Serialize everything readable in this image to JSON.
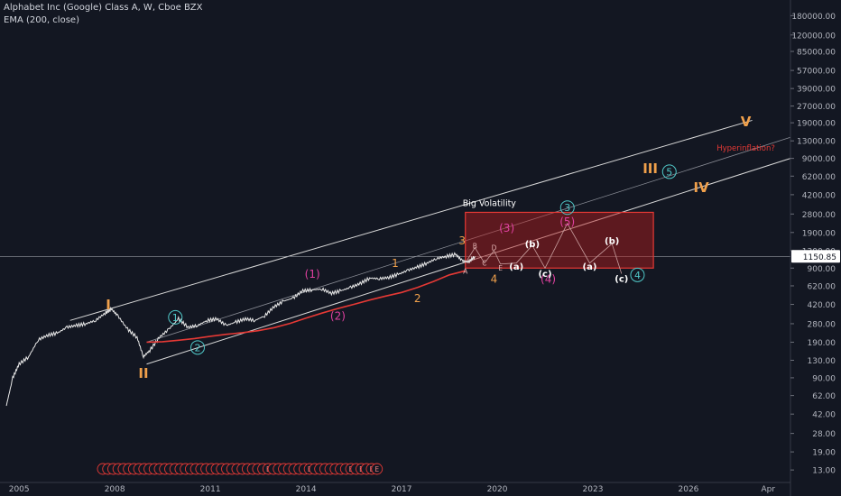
{
  "header": {
    "title": "Alphabet Inc (Google) Class A, W, Cboe BZX",
    "indicator": "EMA (200, close)"
  },
  "colors": {
    "background": "#131722",
    "price": "#e8e8e8",
    "ema": "#e53935",
    "channel": "#d8d8d8",
    "box_border": "#e53935",
    "box_fill": "#b71c1c",
    "primary_wave": "#f0a04b",
    "intermediate_wave": "#e040a0",
    "minor_wave": "#50c8c8",
    "corrective_wave": "#ffffff",
    "annotation_red": "#e53935",
    "axis_text": "#b2b5be"
  },
  "price_label": "1150.85",
  "chart_data": {
    "type": "line",
    "title": "Alphabet Inc (Google) Class A, W, Cboe BZX",
    "xlabel": "",
    "ylabel": "",
    "y_scale": "log",
    "xlim": [
      2004.4,
      2029.2
    ],
    "ylim": [
      10,
      250000
    ],
    "x_ticks": [
      {
        "x": 2005,
        "label": "2005"
      },
      {
        "x": 2008,
        "label": "2008"
      },
      {
        "x": 2011,
        "label": "2011"
      },
      {
        "x": 2014,
        "label": "2014"
      },
      {
        "x": 2017,
        "label": "2017"
      },
      {
        "x": 2020,
        "label": "2020"
      },
      {
        "x": 2023,
        "label": "2023"
      },
      {
        "x": 2026,
        "label": "2026"
      },
      {
        "x": 2028.5,
        "label": "Apr"
      }
    ],
    "y_ticks": [
      {
        "y": 180000,
        "label": "180000.00"
      },
      {
        "y": 120000,
        "label": "120000.00"
      },
      {
        "y": 85000,
        "label": "85000.00"
      },
      {
        "y": 57000,
        "label": "57000.00"
      },
      {
        "y": 39000,
        "label": "39000.00"
      },
      {
        "y": 27000,
        "label": "27000.00"
      },
      {
        "y": 19000,
        "label": "19000.00"
      },
      {
        "y": 13000,
        "label": "13000.00"
      },
      {
        "y": 9000,
        "label": "9000.00"
      },
      {
        "y": 6200,
        "label": "6200.00"
      },
      {
        "y": 4200,
        "label": "4200.00"
      },
      {
        "y": 2800,
        "label": "2800.00"
      },
      {
        "y": 1900,
        "label": "1900.00"
      },
      {
        "y": 1300,
        "label": "1300.00"
      },
      {
        "y": 900,
        "label": "900.00"
      },
      {
        "y": 620,
        "label": "620.00"
      },
      {
        "y": 420,
        "label": "420.00"
      },
      {
        "y": 280,
        "label": "280.00"
      },
      {
        "y": 190,
        "label": "190.00"
      },
      {
        "y": 130,
        "label": "130.00"
      },
      {
        "y": 90,
        "label": "90.00"
      },
      {
        "y": 62,
        "label": "62.00"
      },
      {
        "y": 42,
        "label": "42.00"
      },
      {
        "y": 28,
        "label": "28.00"
      },
      {
        "y": 19,
        "label": "19.00"
      },
      {
        "y": 13,
        "label": "13.00"
      }
    ],
    "current_price": 1150.85,
    "series": [
      {
        "name": "",
        "role": "price",
        "x": [
          2004.6,
          2004.8,
          2005.0,
          2005.3,
          2005.6,
          2005.9,
          2006.2,
          2006.5,
          2006.8,
          2007.1,
          2007.4,
          2007.7,
          2007.9,
          2008.1,
          2008.4,
          2008.7,
          2008.9,
          2009.1,
          2009.4,
          2009.7,
          2010.0,
          2010.3,
          2010.6,
          2010.9,
          2011.2,
          2011.5,
          2011.8,
          2012.1,
          2012.4,
          2012.7,
          2013.0,
          2013.3,
          2013.6,
          2013.9,
          2014.2,
          2014.5,
          2014.8,
          2015.1,
          2015.4,
          2015.7,
          2016.0,
          2016.3,
          2016.6,
          2016.9,
          2017.2,
          2017.5,
          2017.8,
          2018.1,
          2018.4,
          2018.7,
          2018.9,
          2019.1,
          2019.3
        ],
        "y": [
          50,
          90,
          120,
          140,
          200,
          220,
          230,
          260,
          270,
          280,
          300,
          350,
          380,
          330,
          250,
          210,
          140,
          160,
          210,
          250,
          310,
          260,
          270,
          300,
          310,
          270,
          290,
          310,
          300,
          330,
          400,
          450,
          480,
          560,
          570,
          580,
          530,
          560,
          600,
          650,
          730,
          720,
          740,
          790,
          860,
          920,
          1000,
          1100,
          1150,
          1200,
          1050,
          1020,
          1150
        ]
      },
      {
        "name": "EMA (200, close)",
        "role": "ema",
        "x": [
          2009.0,
          2009.5,
          2010.0,
          2010.5,
          2011.0,
          2011.5,
          2012.0,
          2012.5,
          2013.0,
          2013.5,
          2014.0,
          2014.5,
          2015.0,
          2015.5,
          2016.0,
          2016.5,
          2017.0,
          2017.5,
          2018.0,
          2018.5,
          2019.0
        ],
        "y": [
          190,
          192,
          198,
          205,
          215,
          224,
          232,
          242,
          258,
          282,
          315,
          350,
          385,
          420,
          460,
          500,
          540,
          600,
          680,
          780,
          850
        ]
      }
    ],
    "channel_lines": [
      {
        "name": "upper",
        "x": [
          2006.6,
          2028.0
        ],
        "y": [
          300,
          20000
        ]
      },
      {
        "name": "middle",
        "x": [
          2009.0,
          2029.2
        ],
        "y": [
          190,
          14000
        ]
      },
      {
        "name": "lower",
        "x": [
          2009.0,
          2029.2
        ],
        "y": [
          120,
          9000
        ]
      }
    ],
    "box": {
      "x": [
        2019.0,
        2024.9
      ],
      "y": [
        900,
        2900
      ],
      "label": "Big Volatility"
    },
    "annotations": [
      {
        "text": "I",
        "x": 2007.8,
        "y": 420,
        "group": "primary"
      },
      {
        "text": "II",
        "x": 2008.9,
        "y": 100,
        "group": "primary"
      },
      {
        "text": "III",
        "x": 2024.8,
        "y": 7300,
        "group": "primary"
      },
      {
        "text": "IV",
        "x": 2026.4,
        "y": 4900,
        "group": "primary"
      },
      {
        "text": "V",
        "x": 2027.8,
        "y": 19500,
        "group": "primary"
      },
      {
        "text": "1",
        "x": 2009.9,
        "y": 320,
        "group": "minor_circle"
      },
      {
        "text": "2",
        "x": 2010.6,
        "y": 170,
        "group": "minor_circle"
      },
      {
        "text": "3",
        "x": 2022.2,
        "y": 3200,
        "group": "minor_circle"
      },
      {
        "text": "4",
        "x": 2024.4,
        "y": 780,
        "group": "minor_circle"
      },
      {
        "text": "5",
        "x": 2025.4,
        "y": 6800,
        "group": "minor_circle"
      },
      {
        "text": "(1)",
        "x": 2014.2,
        "y": 800,
        "group": "intermediate"
      },
      {
        "text": "(2)",
        "x": 2015.0,
        "y": 330,
        "group": "intermediate"
      },
      {
        "text": "(3)",
        "x": 2020.3,
        "y": 2100,
        "group": "intermediate"
      },
      {
        "text": "(5)",
        "x": 2022.2,
        "y": 2400,
        "group": "intermediate"
      },
      {
        "text": "(4)",
        "x": 2021.6,
        "y": 720,
        "group": "intermediate"
      },
      {
        "text": "1",
        "x": 2016.8,
        "y": 1000,
        "group": "primary_num"
      },
      {
        "text": "2",
        "x": 2017.5,
        "y": 480,
        "group": "primary_num"
      },
      {
        "text": "3",
        "x": 2018.9,
        "y": 1600,
        "group": "primary_num"
      },
      {
        "text": "4",
        "x": 2019.9,
        "y": 720,
        "group": "primary_num"
      },
      {
        "text": "(b)",
        "x": 2021.1,
        "y": 1500,
        "group": "corrective"
      },
      {
        "text": "(a)",
        "x": 2020.6,
        "y": 930,
        "group": "corrective"
      },
      {
        "text": "(c)",
        "x": 2021.5,
        "y": 800,
        "group": "corrective"
      },
      {
        "text": "(b)",
        "x": 2023.6,
        "y": 1600,
        "group": "corrective"
      },
      {
        "text": "(a)",
        "x": 2022.9,
        "y": 930,
        "group": "corrective"
      },
      {
        "text": "(c)",
        "x": 2023.9,
        "y": 720,
        "group": "corrective"
      },
      {
        "text": "A",
        "x": 2019.0,
        "y": 840,
        "group": "sub"
      },
      {
        "text": "B",
        "x": 2019.3,
        "y": 1430,
        "group": "sub"
      },
      {
        "text": "C",
        "x": 2019.6,
        "y": 1000,
        "group": "sub"
      },
      {
        "text": "D",
        "x": 2019.9,
        "y": 1380,
        "group": "sub"
      },
      {
        "text": "E",
        "x": 2020.1,
        "y": 900,
        "group": "sub"
      },
      {
        "text": "Hyperinflation?",
        "x": 2027.8,
        "y": 11200,
        "group": "note"
      }
    ],
    "events_row": [
      "",
      "",
      "",
      "",
      "",
      "",
      "",
      "",
      "",
      "",
      "",
      "",
      "",
      "",
      "",
      "",
      "",
      "",
      "",
      "",
      "",
      "",
      "",
      "",
      "",
      "",
      "",
      "",
      "",
      "",
      "",
      "",
      "E",
      "",
      "",
      "",
      "",
      "",
      "",
      "",
      "E",
      "",
      "",
      "",
      "",
      "",
      "",
      "",
      "E",
      "",
      "E",
      "",
      "E",
      "E"
    ]
  }
}
